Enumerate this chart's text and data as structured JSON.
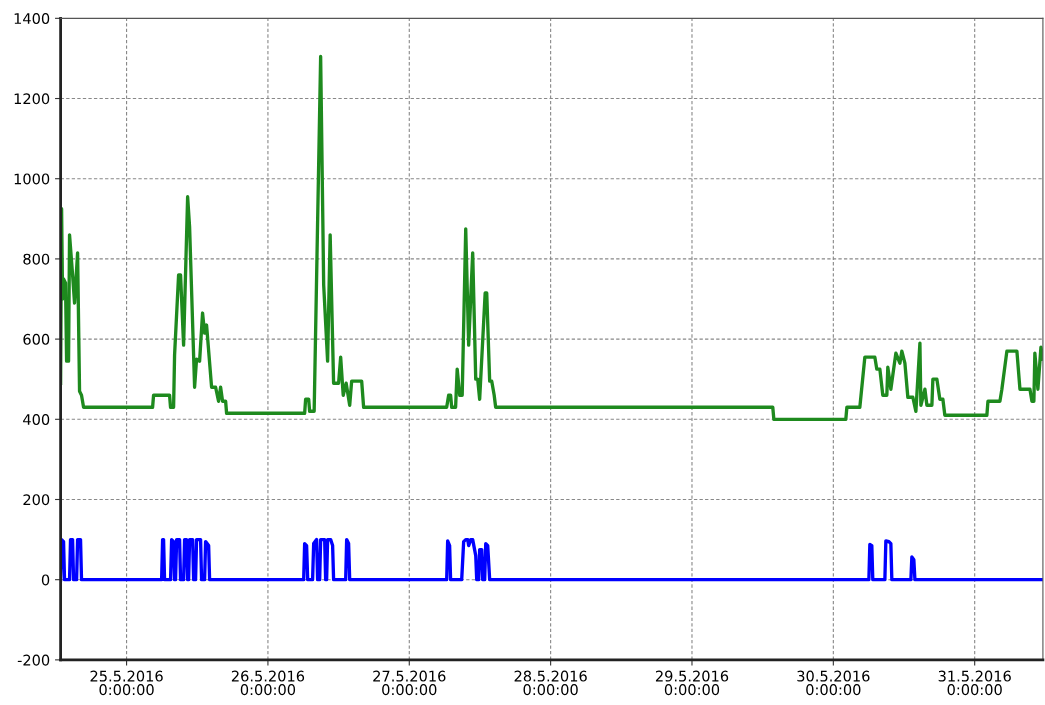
{
  "chart_data": {
    "type": "line",
    "xlim": [
      "2016-05-24T12:48",
      "2016-05-31T11:35"
    ],
    "xticks": [
      {
        "value": "2016-05-25",
        "label": "25.5.2016\n0:00:00"
      },
      {
        "value": "2016-05-26",
        "label": "26.5.2016\n0:00:00"
      },
      {
        "value": "2016-05-27",
        "label": "27.5.2016\n0:00:00"
      },
      {
        "value": "2016-05-28",
        "label": "28.5.2016\n0:00:00"
      },
      {
        "value": "2016-05-29",
        "label": "29.5.2016\n0:00:00"
      },
      {
        "value": "2016-05-30",
        "label": "30.5.2016\n0:00:00"
      },
      {
        "value": "2016-05-31",
        "label": "31.5.2016\n0:00:00"
      }
    ],
    "ylim": [
      -200,
      1400
    ],
    "yticks": [
      -200,
      0,
      200,
      400,
      600,
      800,
      1000,
      1200,
      1400
    ],
    "grid": true,
    "line_style": "solid",
    "series": [
      {
        "color": "#1e8a1e",
        "x": [
          "2016-05-24T12:48",
          "2016-05-24T12:58",
          "2016-05-24T13:08",
          "2016-05-24T13:18",
          "2016-05-24T13:38",
          "2016-05-24T13:49",
          "2016-05-24T14:09",
          "2016-05-24T14:19",
          "2016-05-24T14:50",
          "2016-05-24T15:10",
          "2016-05-24T15:41",
          "2016-05-24T16:01",
          "2016-05-24T16:21",
          "2016-05-24T16:42",
          "2016-05-25T04:25",
          "2016-05-25T04:35",
          "2016-05-25T07:18",
          "2016-05-25T07:28",
          "2016-05-25T07:59",
          "2016-05-25T08:09",
          "2016-05-25T08:50",
          "2016-05-25T09:10",
          "2016-05-25T09:41",
          "2016-05-25T10:22",
          "2016-05-25T10:42",
          "2016-05-25T11:33",
          "2016-05-25T11:53",
          "2016-05-25T12:24",
          "2016-05-25T12:54",
          "2016-05-25T13:15",
          "2016-05-25T13:35",
          "2016-05-25T14:26",
          "2016-05-25T15:07",
          "2016-05-25T15:37",
          "2016-05-25T15:58",
          "2016-05-25T16:18",
          "2016-05-25T16:49",
          "2016-05-25T16:59",
          "2016-05-26T06:14",
          "2016-05-26T06:24",
          "2016-05-26T06:55",
          "2016-05-26T07:05",
          "2016-05-26T07:51",
          "2016-05-26T08:57",
          "2016-05-26T09:28",
          "2016-05-26T10:08",
          "2016-05-26T10:34",
          "2016-05-26T11:09",
          "2016-05-26T12:00",
          "2016-05-26T12:21",
          "2016-05-26T12:47",
          "2016-05-26T13:17",
          "2016-05-26T13:53",
          "2016-05-26T14:13",
          "2016-05-26T15:55",
          "2016-05-26T16:15",
          "2016-05-27T06:21",
          "2016-05-27T06:41",
          "2016-05-27T07:01",
          "2016-05-27T07:12",
          "2016-05-27T07:52",
          "2016-05-27T08:08",
          "2016-05-27T08:34",
          "2016-05-27T08:59",
          "2016-05-27T09:35",
          "2016-05-27T10:05",
          "2016-05-27T10:46",
          "2016-05-27T11:17",
          "2016-05-27T11:37",
          "2016-05-27T11:57",
          "2016-05-27T12:53",
          "2016-05-27T13:09",
          "2016-05-27T13:39",
          "2016-05-27T14:00",
          "2016-05-27T14:25",
          "2016-05-27T14:40",
          "2016-05-29T13:43",
          "2016-05-29T13:54",
          "2016-05-30T02:07",
          "2016-05-30T02:18",
          "2016-05-30T04:30",
          "2016-05-30T05:21",
          "2016-05-30T07:03",
          "2016-05-30T07:23",
          "2016-05-30T07:54",
          "2016-05-30T08:24",
          "2016-05-30T09:05",
          "2016-05-30T09:15",
          "2016-05-30T09:46",
          "2016-05-30T10:37",
          "2016-05-30T11:18",
          "2016-05-30T11:38",
          "2016-05-30T12:09",
          "2016-05-30T12:39",
          "2016-05-30T13:30",
          "2016-05-30T14:01",
          "2016-05-30T14:42",
          "2016-05-30T14:52",
          "2016-05-30T15:33",
          "2016-05-30T15:53",
          "2016-05-30T16:44",
          "2016-05-30T16:54",
          "2016-05-30T17:35",
          "2016-05-30T18:05",
          "2016-05-30T18:36",
          "2016-05-30T18:56",
          "2016-05-31T02:04",
          "2016-05-31T02:15",
          "2016-05-31T04:17",
          "2016-05-31T04:37",
          "2016-05-31T05:28",
          "2016-05-31T07:10",
          "2016-05-31T07:41",
          "2016-05-31T09:23",
          "2016-05-31T09:43",
          "2016-05-31T10:03",
          "2016-05-31T10:13",
          "2016-05-31T10:44",
          "2016-05-31T11:15",
          "2016-05-31T11:35"
        ],
        "values": [
          490,
          925,
          700,
          750,
          740,
          545,
          545,
          860,
          760,
          690,
          815,
          470,
          460,
          430,
          430,
          460,
          460,
          430,
          430,
          560,
          760,
          760,
          585,
          955,
          880,
          480,
          550,
          545,
          665,
          615,
          635,
          480,
          480,
          445,
          480,
          445,
          445,
          415,
          415,
          450,
          450,
          420,
          420,
          1305,
          735,
          545,
          860,
          490,
          490,
          555,
          460,
          490,
          435,
          495,
          495,
          430,
          430,
          460,
          460,
          430,
          430,
          525,
          460,
          460,
          875,
          585,
          815,
          500,
          500,
          450,
          715,
          715,
          495,
          495,
          460,
          430,
          430,
          400,
          400,
          430,
          430,
          555,
          555,
          525,
          525,
          460,
          460,
          530,
          475,
          565,
          540,
          570,
          540,
          455,
          455,
          420,
          590,
          435,
          475,
          435,
          435,
          500,
          500,
          450,
          450,
          410,
          410,
          445,
          445,
          475,
          570,
          570,
          475,
          475,
          445,
          445,
          565,
          475,
          580,
          550
        ]
      },
      {
        "color": "#0000ff",
        "x": [
          "2016-05-24T12:48",
          "2016-05-24T12:58",
          "2016-05-24T13:18",
          "2016-05-24T13:28",
          "2016-05-24T14:19",
          "2016-05-24T14:29",
          "2016-05-24T14:50",
          "2016-05-24T15:00",
          "2016-05-24T15:31",
          "2016-05-24T15:41",
          "2016-05-24T16:11",
          "2016-05-24T16:21",
          "2016-05-25T05:57",
          "2016-05-25T06:07",
          "2016-05-25T06:17",
          "2016-05-25T06:27",
          "2016-05-25T07:28",
          "2016-05-25T07:39",
          "2016-05-25T07:59",
          "2016-05-25T08:09",
          "2016-05-25T08:19",
          "2016-05-25T08:30",
          "2016-05-25T09:00",
          "2016-05-25T09:10",
          "2016-05-25T09:41",
          "2016-05-25T09:51",
          "2016-05-25T10:11",
          "2016-05-25T10:22",
          "2016-05-25T10:32",
          "2016-05-25T10:42",
          "2016-05-25T11:13",
          "2016-05-25T11:23",
          "2016-05-25T11:43",
          "2016-05-25T11:53",
          "2016-05-25T12:34",
          "2016-05-25T12:44",
          "2016-05-25T13:15",
          "2016-05-25T13:25",
          "2016-05-25T13:56",
          "2016-05-25T14:06",
          "2016-05-26T06:04",
          "2016-05-26T06:14",
          "2016-05-26T06:34",
          "2016-05-26T06:45",
          "2016-05-26T07:35",
          "2016-05-26T07:46",
          "2016-05-26T08:16",
          "2016-05-26T08:26",
          "2016-05-26T08:47",
          "2016-05-26T08:57",
          "2016-05-26T09:38",
          "2016-05-26T09:48",
          "2016-05-26T09:58",
          "2016-05-26T10:08",
          "2016-05-26T10:39",
          "2016-05-26T10:59",
          "2016-05-26T11:09",
          "2016-05-26T13:12",
          "2016-05-26T13:22",
          "2016-05-26T13:42",
          "2016-05-26T13:53",
          "2016-05-27T06:21",
          "2016-05-27T06:31",
          "2016-05-27T06:51",
          "2016-05-27T07:01",
          "2016-05-27T08:54",
          "2016-05-27T09:14",
          "2016-05-27T09:35",
          "2016-05-27T09:55",
          "2016-05-27T10:05",
          "2016-05-27T10:26",
          "2016-05-27T10:46",
          "2016-05-27T11:17",
          "2016-05-27T11:27",
          "2016-05-27T11:47",
          "2016-05-27T11:57",
          "2016-05-27T12:18",
          "2016-05-27T12:28",
          "2016-05-27T12:48",
          "2016-05-27T12:59",
          "2016-05-27T13:19",
          "2016-05-27T13:39",
          "2016-05-30T06:02",
          "2016-05-30T06:12",
          "2016-05-30T06:32",
          "2016-05-30T06:42",
          "2016-05-30T08:45",
          "2016-05-30T08:55",
          "2016-05-30T09:26",
          "2016-05-30T09:46",
          "2016-05-30T09:56",
          "2016-05-30T13:10",
          "2016-05-30T13:20",
          "2016-05-30T13:40",
          "2016-05-30T13:51",
          "2016-05-31T11:35"
        ],
        "values": [
          0,
          100,
          95,
          0,
          0,
          100,
          100,
          0,
          0,
          100,
          100,
          0,
          0,
          100,
          100,
          0,
          0,
          100,
          95,
          0,
          0,
          100,
          100,
          0,
          0,
          100,
          100,
          0,
          0,
          100,
          100,
          0,
          0,
          100,
          100,
          0,
          0,
          95,
          85,
          0,
          0,
          90,
          85,
          0,
          0,
          90,
          100,
          0,
          0,
          100,
          100,
          0,
          0,
          100,
          100,
          85,
          0,
          0,
          100,
          90,
          0,
          0,
          97,
          85,
          0,
          0,
          95,
          100,
          100,
          85,
          100,
          100,
          60,
          0,
          0,
          75,
          75,
          0,
          0,
          90,
          85,
          0,
          0,
          88,
          85,
          0,
          0,
          97,
          95,
          90,
          0,
          0,
          57,
          50,
          0,
          0
        ]
      }
    ]
  }
}
